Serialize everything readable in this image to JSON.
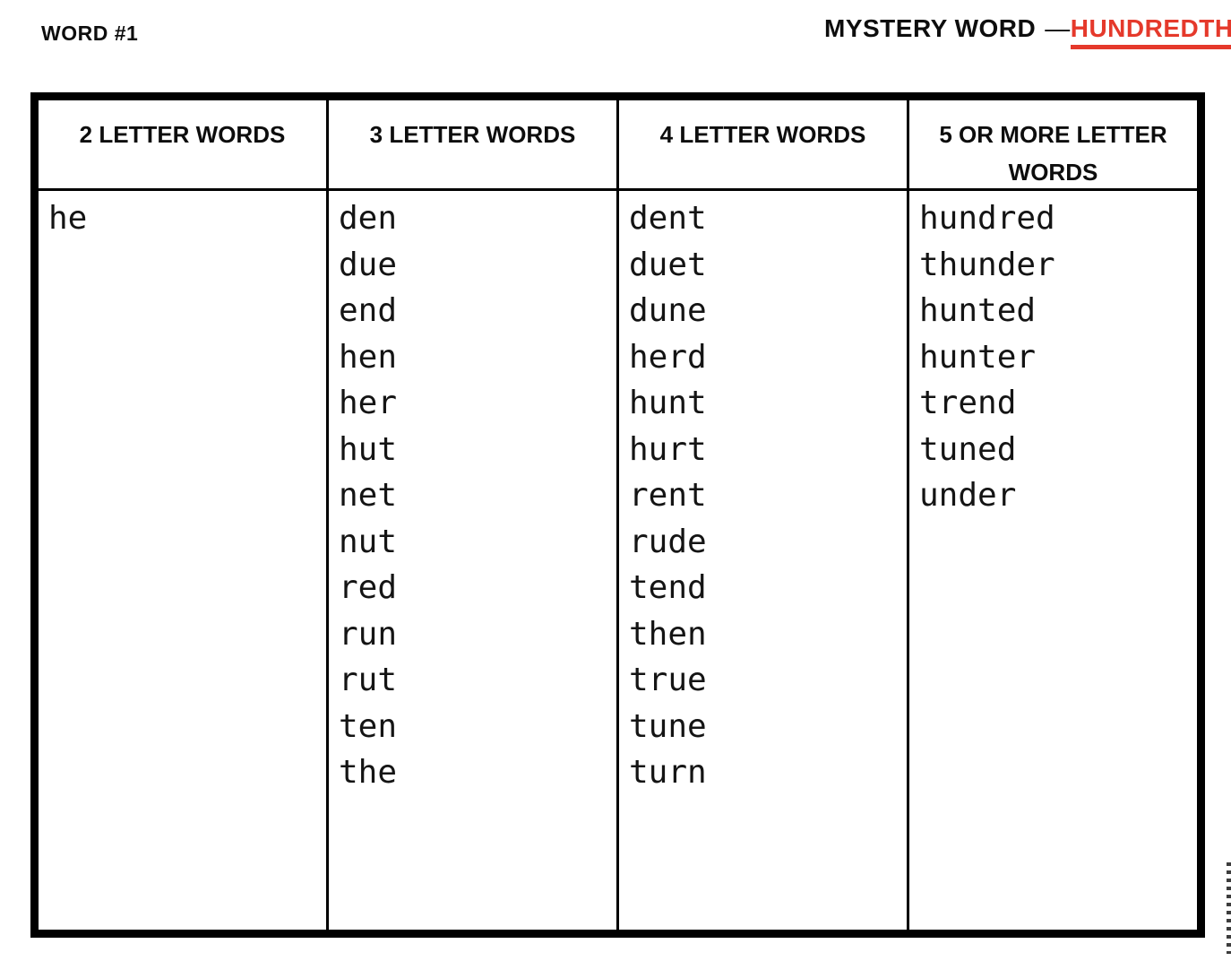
{
  "header": {
    "word_label": "WORD #1",
    "mystery_label": "MYSTERY WORD",
    "dash": "—",
    "answer": "HUNDREDTH"
  },
  "colors": {
    "accent_red": "#e5392b",
    "border_black": "#000000"
  },
  "table": {
    "columns": [
      {
        "header": "2 LETTER WORDS",
        "words": [
          "he"
        ]
      },
      {
        "header": "3 LETTER WORDS",
        "words": [
          "den",
          "due",
          "end",
          "hen",
          "her",
          "hut",
          "net",
          "nut",
          "red",
          "run",
          "rut",
          "ten",
          "the"
        ]
      },
      {
        "header": "4 LETTER WORDS",
        "words": [
          "dent",
          "duet",
          "dune",
          "herd",
          "hunt",
          "hurt",
          "rent",
          "rude",
          "tend",
          "then",
          "true",
          "tune",
          "turn"
        ]
      },
      {
        "header": "5 OR MORE LETTER WORDS",
        "words": [
          "hundred",
          "thunder",
          "hunted",
          "hunter",
          "trend",
          "tuned",
          "under"
        ]
      }
    ]
  }
}
